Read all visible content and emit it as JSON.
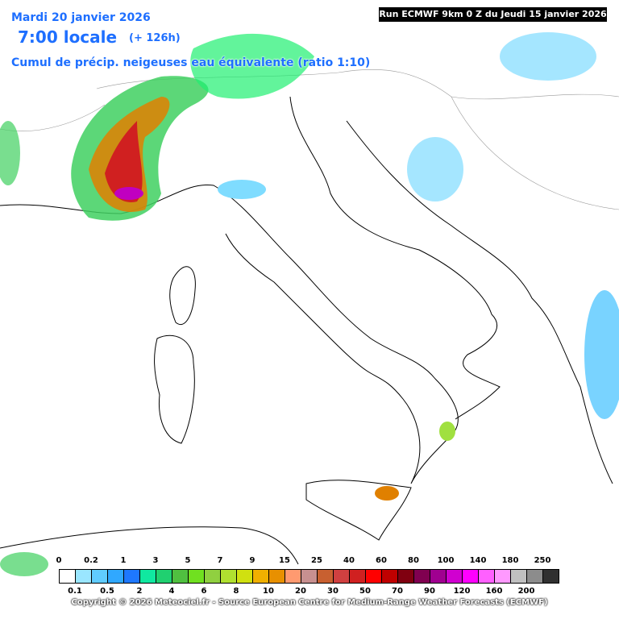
{
  "header": {
    "date": "Mardi 20 janvier 2026",
    "time": "7:00 locale",
    "lead_time": "(+ 126h)",
    "parameter": "Cumul de précip. neigeuses  eau équivalente (ratio 1:10)",
    "run": "Run ECMWF 9km 0 Z du Jeudi 15 janvier 2026"
  },
  "legend": {
    "labels": [
      "0",
      "0.1",
      "0.2",
      "0.5",
      "1",
      "2",
      "3",
      "4",
      "5",
      "6",
      "7",
      "8",
      "9",
      "10",
      "15",
      "20",
      "25",
      "30",
      "40",
      "50",
      "60",
      "70",
      "80",
      "90",
      "100",
      "120",
      "140",
      "160",
      "180",
      "200",
      "250"
    ],
    "colors": [
      "#ffffff",
      "#9ae6ff",
      "#60ccff",
      "#30a8ff",
      "#1e78ff",
      "#10e8a0",
      "#20d070",
      "#50c040",
      "#70e020",
      "#90d040",
      "#b0e030",
      "#d0e010",
      "#f0b000",
      "#e89000",
      "#ff9a70",
      "#c89090",
      "#c86030",
      "#d04040",
      "#d02020",
      "#ff0000",
      "#c00000",
      "#800010",
      "#800050",
      "#a00090",
      "#d000d0",
      "#ff00ff",
      "#ff60ff",
      "#ff99ff",
      "#c0c0c0",
      "#8c8c8c",
      "#303030"
    ]
  },
  "footer": {
    "copyright": "Copyright © 2026 Meteociel.fr - Source European Centre for Medium-Range Weather Forecasts (ECMWF)"
  }
}
